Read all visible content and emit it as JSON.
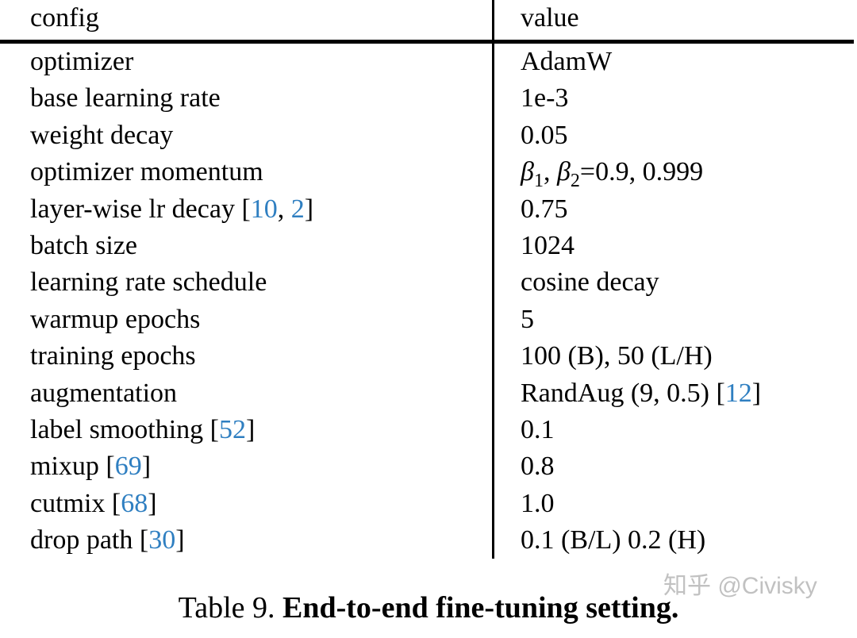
{
  "colors": {
    "text": "#000000",
    "citation_blue": "#2f7fc1",
    "rule_black": "#000000",
    "watermark_gray": "#8f8f8f"
  },
  "table": {
    "header": {
      "config": "config",
      "value": "value"
    },
    "rows": [
      {
        "config": [
          {
            "t": "optimizer"
          }
        ],
        "value": [
          {
            "t": "AdamW"
          }
        ]
      },
      {
        "config": [
          {
            "t": "base learning rate"
          }
        ],
        "value": [
          {
            "t": "1e-3"
          }
        ]
      },
      {
        "config": [
          {
            "t": "weight decay"
          }
        ],
        "value": [
          {
            "t": "0.05"
          }
        ]
      },
      {
        "config": [
          {
            "t": "optimizer momentum"
          }
        ],
        "value": [
          {
            "t": "β",
            "i": true
          },
          {
            "t": "1",
            "s": true
          },
          {
            "t": ", "
          },
          {
            "t": "β",
            "i": true
          },
          {
            "t": "2",
            "s": true
          },
          {
            "t": "="
          },
          {
            "t": "0.9, 0.999"
          }
        ]
      },
      {
        "config": [
          {
            "t": "layer-wise lr decay ["
          },
          {
            "t": "10",
            "c": true
          },
          {
            "t": ", "
          },
          {
            "t": "2",
            "c": true
          },
          {
            "t": "]"
          }
        ],
        "value": [
          {
            "t": "0.75"
          }
        ]
      },
      {
        "config": [
          {
            "t": "batch size"
          }
        ],
        "value": [
          {
            "t": "1024"
          }
        ]
      },
      {
        "config": [
          {
            "t": "learning rate schedule"
          }
        ],
        "value": [
          {
            "t": "cosine decay"
          }
        ]
      },
      {
        "config": [
          {
            "t": "warmup epochs"
          }
        ],
        "value": [
          {
            "t": "5"
          }
        ]
      },
      {
        "config": [
          {
            "t": "training epochs"
          }
        ],
        "value": [
          {
            "t": "100 (B), 50 (L/H)"
          }
        ]
      },
      {
        "config": [
          {
            "t": "augmentation"
          }
        ],
        "value": [
          {
            "t": "RandAug (9, 0.5) ["
          },
          {
            "t": "12",
            "c": true
          },
          {
            "t": "]"
          }
        ]
      },
      {
        "config": [
          {
            "t": "label smoothing ["
          },
          {
            "t": "52",
            "c": true
          },
          {
            "t": "]"
          }
        ],
        "value": [
          {
            "t": "0.1"
          }
        ]
      },
      {
        "config": [
          {
            "t": "mixup ["
          },
          {
            "t": "69",
            "c": true
          },
          {
            "t": "]"
          }
        ],
        "value": [
          {
            "t": "0.8"
          }
        ]
      },
      {
        "config": [
          {
            "t": "cutmix ["
          },
          {
            "t": "68",
            "c": true
          },
          {
            "t": "]"
          }
        ],
        "value": [
          {
            "t": "1.0"
          }
        ]
      },
      {
        "config": [
          {
            "t": "drop path ["
          },
          {
            "t": "30",
            "c": true
          },
          {
            "t": "]"
          }
        ],
        "value": [
          {
            "t": "0.1 (B/L) 0.2 (H)"
          }
        ]
      }
    ]
  },
  "caption": {
    "prefix": "Table 9. ",
    "title": "End-to-end fine-tuning setting."
  },
  "watermark": "知乎 @Civisky"
}
